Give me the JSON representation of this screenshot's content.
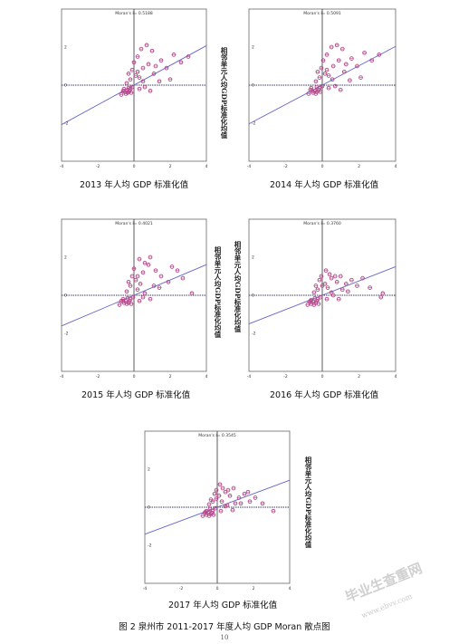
{
  "figure": {
    "caption": "图 2 泉州市 2011-2017 年度人均 GDP Moran 散点图",
    "page_number": "10"
  },
  "watermark": {
    "text": "毕业生查重网",
    "url": "www.ebvv.com"
  },
  "colors": {
    "point": "#b54a8a",
    "regression": "#6666cc",
    "dashed": "#3a3a6a",
    "axis": "#333333",
    "frame": "#666666"
  },
  "chart_data": [
    {
      "type": "scatter",
      "title": "Moran's I= 0.5188",
      "xlabel": "2013 年人均 GDP 标准化值",
      "ylabel": "相邻单元人均GDP标准化均值",
      "xlim": [
        -4,
        4
      ],
      "ylim": [
        -4,
        4
      ],
      "xticks": [
        "-4",
        "-2",
        "0",
        "2",
        "4"
      ],
      "yticks": [
        "2",
        "0",
        "-2"
      ],
      "slope": 0.5188,
      "points": [
        [
          -0.4,
          -0.3
        ],
        [
          -0.35,
          -0.4
        ],
        [
          -0.3,
          -0.35
        ],
        [
          -0.25,
          -0.3
        ],
        [
          -0.45,
          -0.45
        ],
        [
          -0.5,
          -0.35
        ],
        [
          -0.2,
          -0.2
        ],
        [
          -0.15,
          -0.4
        ],
        [
          -0.3,
          -0.15
        ],
        [
          -0.6,
          -0.3
        ],
        [
          -0.1,
          -0.1
        ],
        [
          -0.4,
          0.1
        ],
        [
          -0.2,
          0.3
        ],
        [
          0.1,
          0.5
        ],
        [
          0.2,
          0.7
        ],
        [
          0.3,
          0.4
        ],
        [
          0.5,
          0.9
        ],
        [
          0.8,
          1.1
        ],
        [
          1.0,
          1.8
        ],
        [
          1.2,
          1.0
        ],
        [
          1.5,
          1.3
        ],
        [
          1.8,
          0.9
        ],
        [
          2.2,
          1.6
        ],
        [
          2.6,
          1.2
        ],
        [
          3.0,
          1.5
        ],
        [
          0.6,
          -0.1
        ],
        [
          0.9,
          -0.3
        ],
        [
          1.4,
          0.2
        ],
        [
          0.4,
          1.9
        ],
        [
          0.7,
          2.1
        ],
        [
          -0.1,
          0.8
        ],
        [
          0.0,
          1.2
        ],
        [
          0.2,
          1.5
        ],
        [
          -0.3,
          0.6
        ],
        [
          1.1,
          0.6
        ],
        [
          0.5,
          0.2
        ],
        [
          0.3,
          -0.2
        ],
        [
          -0.7,
          -0.5
        ],
        [
          -0.55,
          -0.2
        ],
        [
          2.0,
          0.3
        ]
      ]
    },
    {
      "type": "scatter",
      "title": "Moran's I= 0.5091",
      "xlabel": "2014 年人均 GDP 标准化值",
      "ylabel": "",
      "xlim": [
        -4,
        4
      ],
      "ylim": [
        -4,
        4
      ],
      "xticks": [
        "-4",
        "-2",
        "0",
        "2",
        "4"
      ],
      "yticks": [
        "2",
        "0",
        "-2"
      ],
      "slope": 0.5091,
      "points": [
        [
          -0.4,
          -0.3
        ],
        [
          -0.35,
          -0.45
        ],
        [
          -0.3,
          -0.35
        ],
        [
          -0.2,
          -0.25
        ],
        [
          -0.5,
          -0.4
        ],
        [
          -0.55,
          -0.3
        ],
        [
          -0.15,
          -0.15
        ],
        [
          -0.1,
          -0.35
        ],
        [
          -0.3,
          -0.1
        ],
        [
          -0.65,
          -0.25
        ],
        [
          0.0,
          -0.05
        ],
        [
          -0.35,
          0.2
        ],
        [
          -0.15,
          0.4
        ],
        [
          0.15,
          0.6
        ],
        [
          0.25,
          0.8
        ],
        [
          0.35,
          0.5
        ],
        [
          0.6,
          1.0
        ],
        [
          0.9,
          1.3
        ],
        [
          1.1,
          1.9
        ],
        [
          1.3,
          1.1
        ],
        [
          1.6,
          1.4
        ],
        [
          1.9,
          1.0
        ],
        [
          2.3,
          1.7
        ],
        [
          2.7,
          1.3
        ],
        [
          3.1,
          1.6
        ],
        [
          0.7,
          -0.05
        ],
        [
          1.0,
          -0.25
        ],
        [
          1.5,
          0.25
        ],
        [
          0.5,
          2.0
        ],
        [
          0.8,
          2.1
        ],
        [
          -0.05,
          0.9
        ],
        [
          0.05,
          1.3
        ],
        [
          0.25,
          1.6
        ],
        [
          -0.25,
          0.7
        ],
        [
          1.2,
          0.7
        ],
        [
          0.55,
          0.3
        ],
        [
          0.35,
          -0.15
        ],
        [
          -0.75,
          -0.45
        ],
        [
          -0.6,
          -0.15
        ],
        [
          2.1,
          0.4
        ]
      ]
    },
    {
      "type": "scatter",
      "title": "Moran's I= 0.4021",
      "xlabel": "2015 年人均 GDP 标准化值",
      "ylabel": "相邻单元人均GDP标准化均值",
      "xlim": [
        -4,
        4
      ],
      "ylim": [
        -4,
        4
      ],
      "xticks": [
        "-4",
        "-2",
        "0",
        "2",
        "4"
      ],
      "yticks": [
        "2",
        "0",
        "-2"
      ],
      "slope": 0.4021,
      "points": [
        [
          -0.45,
          -0.3
        ],
        [
          -0.4,
          -0.45
        ],
        [
          -0.3,
          -0.4
        ],
        [
          -0.25,
          -0.3
        ],
        [
          -0.55,
          -0.4
        ],
        [
          -0.6,
          -0.3
        ],
        [
          -0.2,
          -0.2
        ],
        [
          -0.15,
          -0.45
        ],
        [
          -0.35,
          -0.15
        ],
        [
          -0.7,
          -0.3
        ],
        [
          -0.05,
          -0.1
        ],
        [
          -0.4,
          0.2
        ],
        [
          -0.2,
          0.5
        ],
        [
          0.1,
          0.8
        ],
        [
          0.2,
          1.0
        ],
        [
          0.35,
          0.6
        ],
        [
          0.5,
          1.2
        ],
        [
          0.8,
          1.6
        ],
        [
          0.9,
          2.0
        ],
        [
          1.2,
          1.3
        ],
        [
          1.5,
          1.0
        ],
        [
          1.9,
          0.7
        ],
        [
          2.4,
          1.3
        ],
        [
          2.7,
          0.9
        ],
        [
          3.2,
          0.1
        ],
        [
          0.6,
          0.1
        ],
        [
          0.9,
          -0.2
        ],
        [
          1.4,
          0.4
        ],
        [
          0.3,
          1.9
        ],
        [
          0.6,
          1.7
        ],
        [
          -0.1,
          1.0
        ],
        [
          0.0,
          1.4
        ],
        [
          0.2,
          0.3
        ],
        [
          -0.3,
          0.7
        ],
        [
          1.1,
          0.5
        ],
        [
          0.5,
          -0.1
        ],
        [
          0.3,
          -0.3
        ],
        [
          -0.8,
          -0.5
        ],
        [
          -0.6,
          -0.2
        ],
        [
          2.1,
          1.5
        ]
      ]
    },
    {
      "type": "scatter",
      "title": "Moran's I= 0.3760",
      "xlabel": "2016 年人均 GDP 标准化值",
      "ylabel": "相邻单元人均GDP标准化均值",
      "xlim": [
        -4,
        4
      ],
      "ylim": [
        -4,
        4
      ],
      "xticks": [
        "-4",
        "-2",
        "0",
        "2",
        "4"
      ],
      "yticks": [
        "2",
        "0",
        "-2"
      ],
      "slope": 0.376,
      "points": [
        [
          -0.5,
          -0.35
        ],
        [
          -0.45,
          -0.5
        ],
        [
          -0.35,
          -0.4
        ],
        [
          -0.3,
          -0.3
        ],
        [
          -0.6,
          -0.45
        ],
        [
          -0.65,
          -0.3
        ],
        [
          -0.25,
          -0.2
        ],
        [
          -0.2,
          -0.45
        ],
        [
          -0.4,
          -0.15
        ],
        [
          -0.7,
          -0.35
        ],
        [
          -0.1,
          -0.1
        ],
        [
          -0.45,
          0.15
        ],
        [
          -0.25,
          0.3
        ],
        [
          0.0,
          0.5
        ],
        [
          0.15,
          0.6
        ],
        [
          0.3,
          0.4
        ],
        [
          0.5,
          0.9
        ],
        [
          0.8,
          0.7
        ],
        [
          1.0,
          1.0
        ],
        [
          1.3,
          0.6
        ],
        [
          1.6,
          0.8
        ],
        [
          1.9,
          0.5
        ],
        [
          2.2,
          0.9
        ],
        [
          2.6,
          0.4
        ],
        [
          3.3,
          0.1
        ],
        [
          0.6,
          0.0
        ],
        [
          0.9,
          -0.2
        ],
        [
          1.4,
          0.2
        ],
        [
          0.4,
          1.1
        ],
        [
          0.7,
          1.0
        ],
        [
          -0.15,
          0.8
        ],
        [
          -0.05,
          1.0
        ],
        [
          0.2,
          1.3
        ],
        [
          -0.35,
          0.5
        ],
        [
          1.1,
          0.3
        ],
        [
          0.5,
          0.15
        ],
        [
          0.25,
          -0.2
        ],
        [
          -0.8,
          -0.5
        ],
        [
          -0.6,
          -0.25
        ],
        [
          3.2,
          -0.1
        ]
      ]
    },
    {
      "type": "scatter",
      "title": "Moran's I= 0.3545",
      "xlabel": "2017 年人均 GDP 标准化值",
      "ylabel": "相邻单元人均GDP标准化均值",
      "xlim": [
        -4,
        4
      ],
      "ylim": [
        -4,
        4
      ],
      "xticks": [
        "-4",
        "-2",
        "0",
        "2",
        "4"
      ],
      "yticks": [
        "2",
        "0",
        "-2"
      ],
      "slope": 0.3545,
      "points": [
        [
          -0.5,
          -0.3
        ],
        [
          -0.45,
          -0.45
        ],
        [
          -0.35,
          -0.35
        ],
        [
          -0.3,
          -0.3
        ],
        [
          -0.6,
          -0.4
        ],
        [
          -0.65,
          -0.25
        ],
        [
          -0.25,
          -0.2
        ],
        [
          -0.2,
          -0.4
        ],
        [
          -0.4,
          -0.1
        ],
        [
          -0.7,
          -0.3
        ],
        [
          -0.1,
          -0.05
        ],
        [
          -0.45,
          0.15
        ],
        [
          -0.25,
          0.3
        ],
        [
          -0.05,
          0.45
        ],
        [
          0.1,
          0.6
        ],
        [
          0.25,
          0.3
        ],
        [
          0.45,
          0.8
        ],
        [
          0.7,
          0.6
        ],
        [
          0.9,
          1.0
        ],
        [
          1.2,
          0.5
        ],
        [
          1.5,
          0.7
        ],
        [
          1.8,
          0.3
        ],
        [
          2.1,
          0.5
        ],
        [
          2.5,
          0.2
        ],
        [
          3.1,
          -0.2
        ],
        [
          0.55,
          0.1
        ],
        [
          0.85,
          -0.15
        ],
        [
          1.3,
          0.2
        ],
        [
          0.3,
          1.0
        ],
        [
          0.6,
          0.9
        ],
        [
          -0.15,
          0.7
        ],
        [
          -0.05,
          0.9
        ],
        [
          0.15,
          1.2
        ],
        [
          -0.35,
          0.4
        ],
        [
          1.0,
          0.2
        ],
        [
          0.45,
          0.05
        ],
        [
          0.2,
          -0.2
        ],
        [
          -0.8,
          -0.45
        ],
        [
          -0.6,
          -0.2
        ],
        [
          1.7,
          0.8
        ]
      ]
    }
  ]
}
